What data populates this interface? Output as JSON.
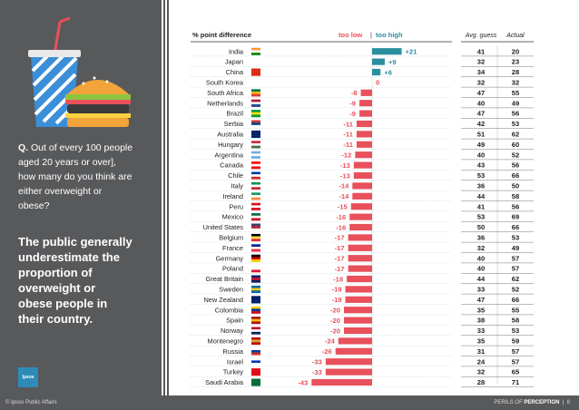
{
  "sidebar": {
    "question_prefix": "Q.",
    "question_lines": [
      "Out of every 100 people",
      "aged 20 years or over],",
      "how many do you think are",
      "either overweight or",
      "obese?"
    ],
    "statement_lines": [
      "The public generally",
      "underestimate the",
      "proportion of",
      "overweight or",
      "obese people in",
      "their country."
    ],
    "logo_text": "Ipsos"
  },
  "footer": {
    "left": "© Ipsos Public Affairs",
    "right_prefix": "PERILS OF ",
    "right_bold": "PERCEPTION",
    "page": "8"
  },
  "colors": {
    "too_low": "#e8505b",
    "too_high": "#2a8fa0",
    "sidebar": "#58595b"
  },
  "chart_data": {
    "type": "bar",
    "title": "% point difference",
    "legend": {
      "too_low": "too low",
      "separator": "|",
      "too_high": "too high"
    },
    "table_headers": [
      "Avg. guess",
      "Actual"
    ],
    "categories": [
      "India",
      "Japan",
      "China",
      "South Korea",
      "South Africa",
      "Netherlands",
      "Brazil",
      "Serbia",
      "Australia",
      "Hungary",
      "Argentina",
      "Canada",
      "Chile",
      "Italy",
      "Ireland",
      "Peru",
      "Mexico",
      "United States",
      "Belgium",
      "France",
      "Germany",
      "Poland",
      "Great Britain",
      "Sweden",
      "New Zealand",
      "Colombia",
      "Spain",
      "Norway",
      "Montenegro",
      "Russia",
      "Israel",
      "Turkey",
      "Saudi Arabia"
    ],
    "difference_labels": [
      "+21",
      "+9",
      "+6",
      "0",
      "-8",
      "-9",
      "-9",
      "-11",
      "-11",
      "-11",
      "-12",
      "-13",
      "-13",
      "-14",
      "-14",
      "-15",
      "-16",
      "-16",
      "-17",
      "-17",
      "-17",
      "-17",
      "-18",
      "-19",
      "-19",
      "-20",
      "-20",
      "-20",
      "-24",
      "-26",
      "-33",
      "-33",
      "-43"
    ],
    "values": [
      21,
      9,
      6,
      0,
      -8,
      -9,
      -9,
      -11,
      -11,
      -11,
      -12,
      -13,
      -13,
      -14,
      -14,
      -15,
      -16,
      -16,
      -17,
      -17,
      -17,
      -17,
      -18,
      -19,
      -19,
      -20,
      -20,
      -20,
      -24,
      -26,
      -33,
      -33,
      -43
    ],
    "avg_guess": [
      41,
      32,
      34,
      32,
      47,
      40,
      47,
      42,
      51,
      49,
      40,
      43,
      53,
      36,
      44,
      41,
      53,
      50,
      36,
      32,
      40,
      40,
      44,
      33,
      47,
      35,
      38,
      33,
      35,
      31,
      24,
      32,
      28
    ],
    "actual": [
      20,
      23,
      28,
      32,
      55,
      49,
      56,
      53,
      62,
      60,
      52,
      56,
      66,
      50,
      58,
      56,
      69,
      66,
      53,
      49,
      57,
      57,
      62,
      52,
      66,
      55,
      58,
      53,
      59,
      57,
      57,
      65,
      71
    ]
  }
}
